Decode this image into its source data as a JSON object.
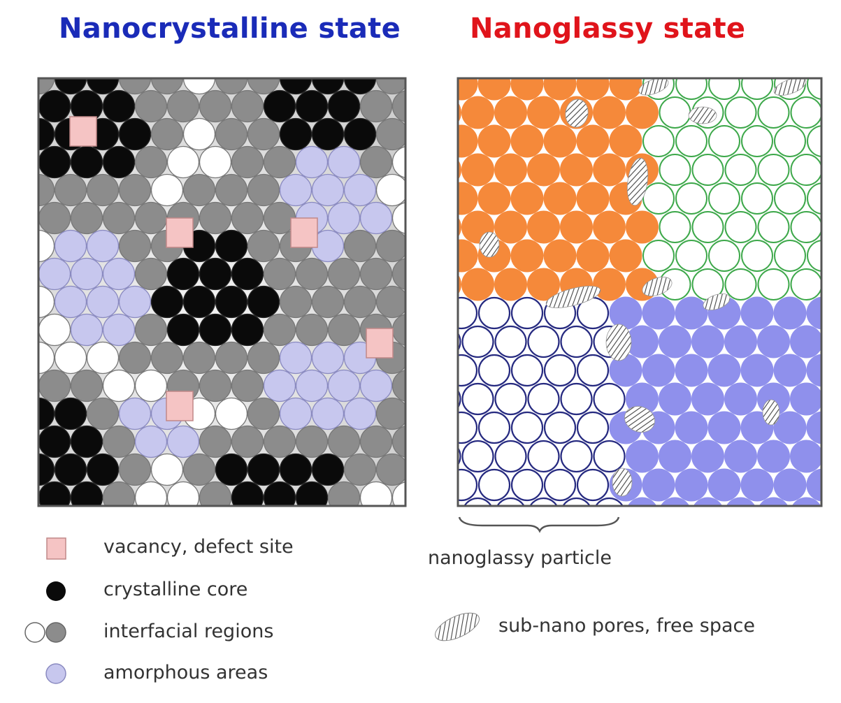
{
  "titles": {
    "left": "Nanocrystalline state",
    "right": "Nanoglassy state"
  },
  "legend_left": [
    {
      "symbol": "pink-square",
      "label": "vacancy, defect site"
    },
    {
      "symbol": "black-circle",
      "label": "crystalline core"
    },
    {
      "symbol": "white-and-gray-circles",
      "label": "interfacial regions"
    },
    {
      "symbol": "lavender-circle",
      "label": "amorphous areas"
    }
  ],
  "right_annotations": {
    "brace_label": "nanoglassy particle",
    "pores_label": "sub-nano pores, free space"
  },
  "colors": {
    "title_left": "#1a2bb8",
    "title_right": "#e0141b",
    "vacancy": "#f5c4c4",
    "crystalline": "#0a0a0a",
    "interfacial_gray": "#8c8c8c",
    "interfacial_white": "#ffffff",
    "amorphous": "#c7c7ee",
    "orange": "#f5893a",
    "green_ring": "#3da84a",
    "navy_ring": "#262a80",
    "periwinkle": "#8f90ec"
  }
}
